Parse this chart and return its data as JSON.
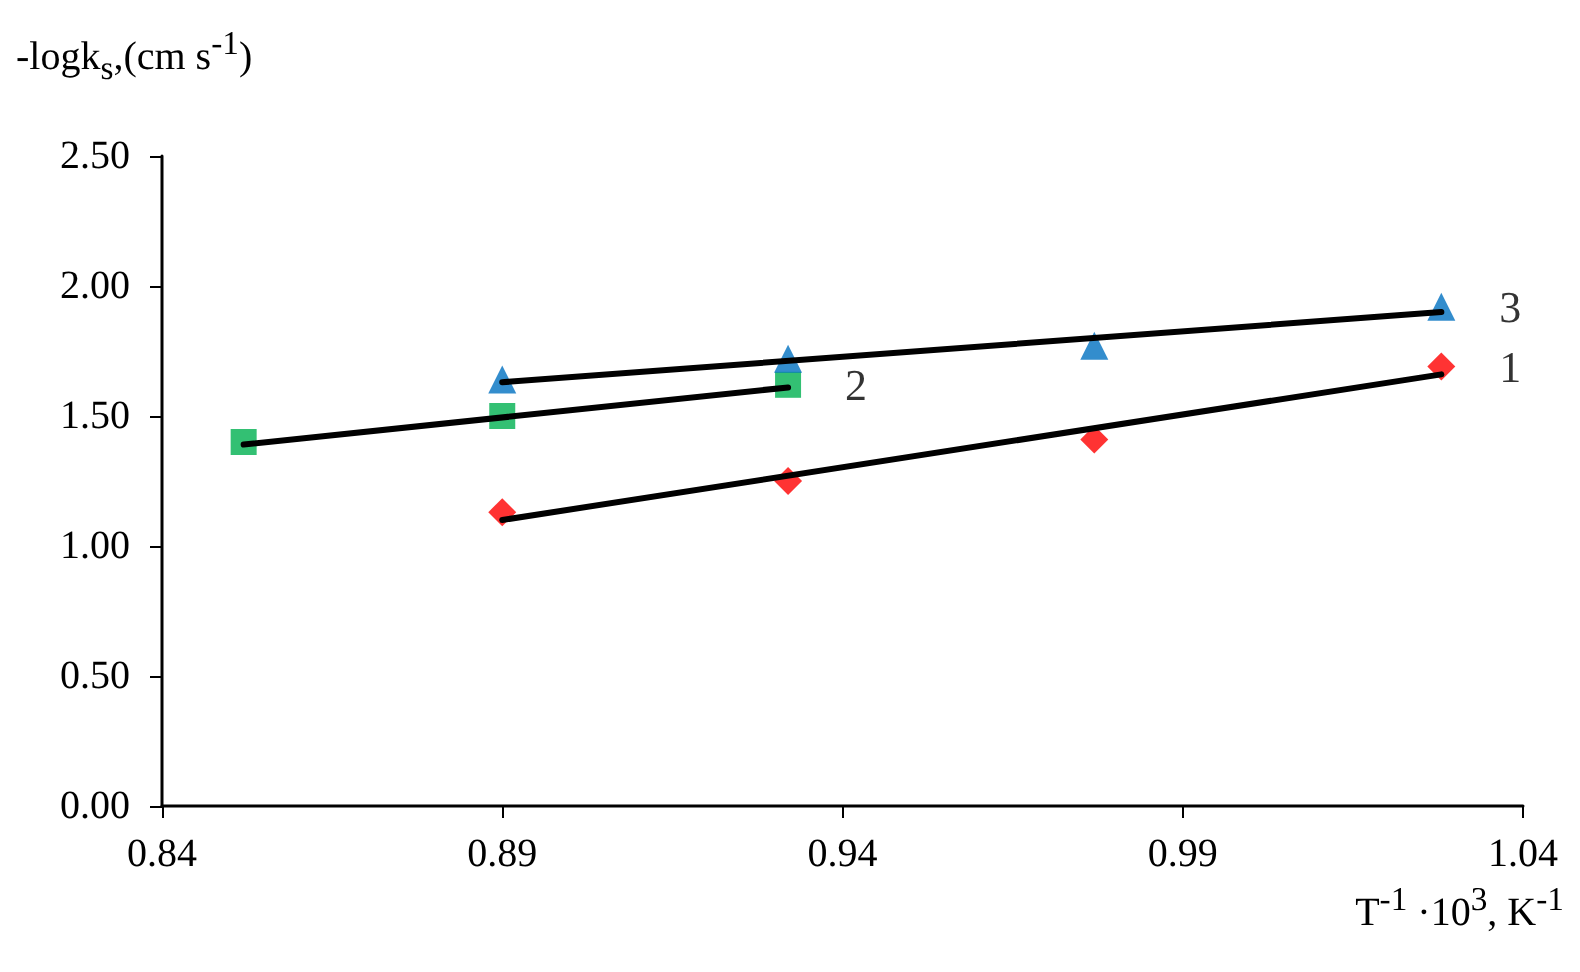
{
  "chart_data": {
    "type": "scatter",
    "xlabel": "T$^{-1}$ ·10$^{3}$, K$^{-1}$",
    "ylabel": "-logk$_{s}$,(cm s$^{-1}$)",
    "xlim": [
      0.84,
      1.04
    ],
    "xticks": [
      0.84,
      0.89,
      0.94,
      0.99,
      1.04
    ],
    "ylim": [
      0,
      2.5
    ],
    "yticks": [
      {
        "value": 0,
        "label": "0.00"
      },
      {
        "value": 0.5,
        "label": "0.50"
      },
      {
        "value": 1,
        "label": "1.00"
      },
      {
        "value": 1.5,
        "label": "1.50"
      },
      {
        "value": 2,
        "label": "2.00"
      },
      {
        "value": 2.5,
        "label": "2.50"
      }
    ],
    "grid": false,
    "legend": false,
    "series": [
      {
        "name": "1",
        "marker": "diamond",
        "color": "#ff0000",
        "x": [
          0.89,
          0.932,
          0.977,
          1.028
        ],
        "values": [
          1.13,
          1.25,
          1.41,
          1.69
        ]
      },
      {
        "name": "2",
        "marker": "square",
        "color": "#00b050",
        "x": [
          0.852,
          0.89,
          0.932
        ],
        "values": [
          1.4,
          1.5,
          1.62
        ]
      },
      {
        "name": "3",
        "marker": "triangle",
        "color": "#0070c0",
        "x": [
          0.89,
          0.932,
          0.977,
          1.028
        ],
        "values": [
          1.64,
          1.72,
          1.77,
          1.92
        ]
      },
      {
        "type": "line",
        "marker": "none",
        "color": "#000000",
        "x": [
          0.89,
          1.028
        ],
        "values": [
          1.1,
          1.66
        ]
      },
      {
        "type": "line",
        "marker": "none",
        "color": "#000000",
        "x": [
          0.852,
          0.932
        ],
        "values": [
          1.39,
          1.61
        ]
      },
      {
        "type": "line",
        "marker": "none",
        "color": "#000000",
        "x": [
          0.89,
          1.028
        ],
        "values": [
          1.63,
          1.9
        ]
      }
    ]
  }
}
